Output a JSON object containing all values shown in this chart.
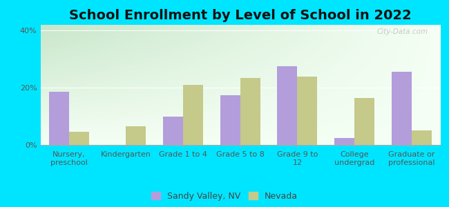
{
  "title": "School Enrollment by Level of School in 2022",
  "categories": [
    "Nursery,\npreschool",
    "Kindergarten",
    "Grade 1 to 4",
    "Grade 5 to 8",
    "Grade 9 to\n12",
    "College\nundergrad",
    "Graduate or\nprofessional"
  ],
  "sandy_valley": [
    18.5,
    0,
    10.0,
    17.5,
    27.5,
    2.5,
    25.5
  ],
  "nevada": [
    4.5,
    6.5,
    21.0,
    23.5,
    24.0,
    16.5,
    5.0
  ],
  "sandy_color": "#b39ddb",
  "nevada_color": "#c5c98a",
  "background_outer": "#00e5ff",
  "background_inner_topleft": "#c8e6c9",
  "background_inner_right": "#f5fff5",
  "ylabel_ticks": [
    "0%",
    "20%",
    "40%"
  ],
  "yticks": [
    0,
    20,
    40
  ],
  "ylim": [
    0,
    42
  ],
  "bar_width": 0.35,
  "legend_labels": [
    "Sandy Valley, NV",
    "Nevada"
  ],
  "watermark": "City-Data.com",
  "title_fontsize": 14,
  "tick_fontsize": 8,
  "legend_fontsize": 9
}
